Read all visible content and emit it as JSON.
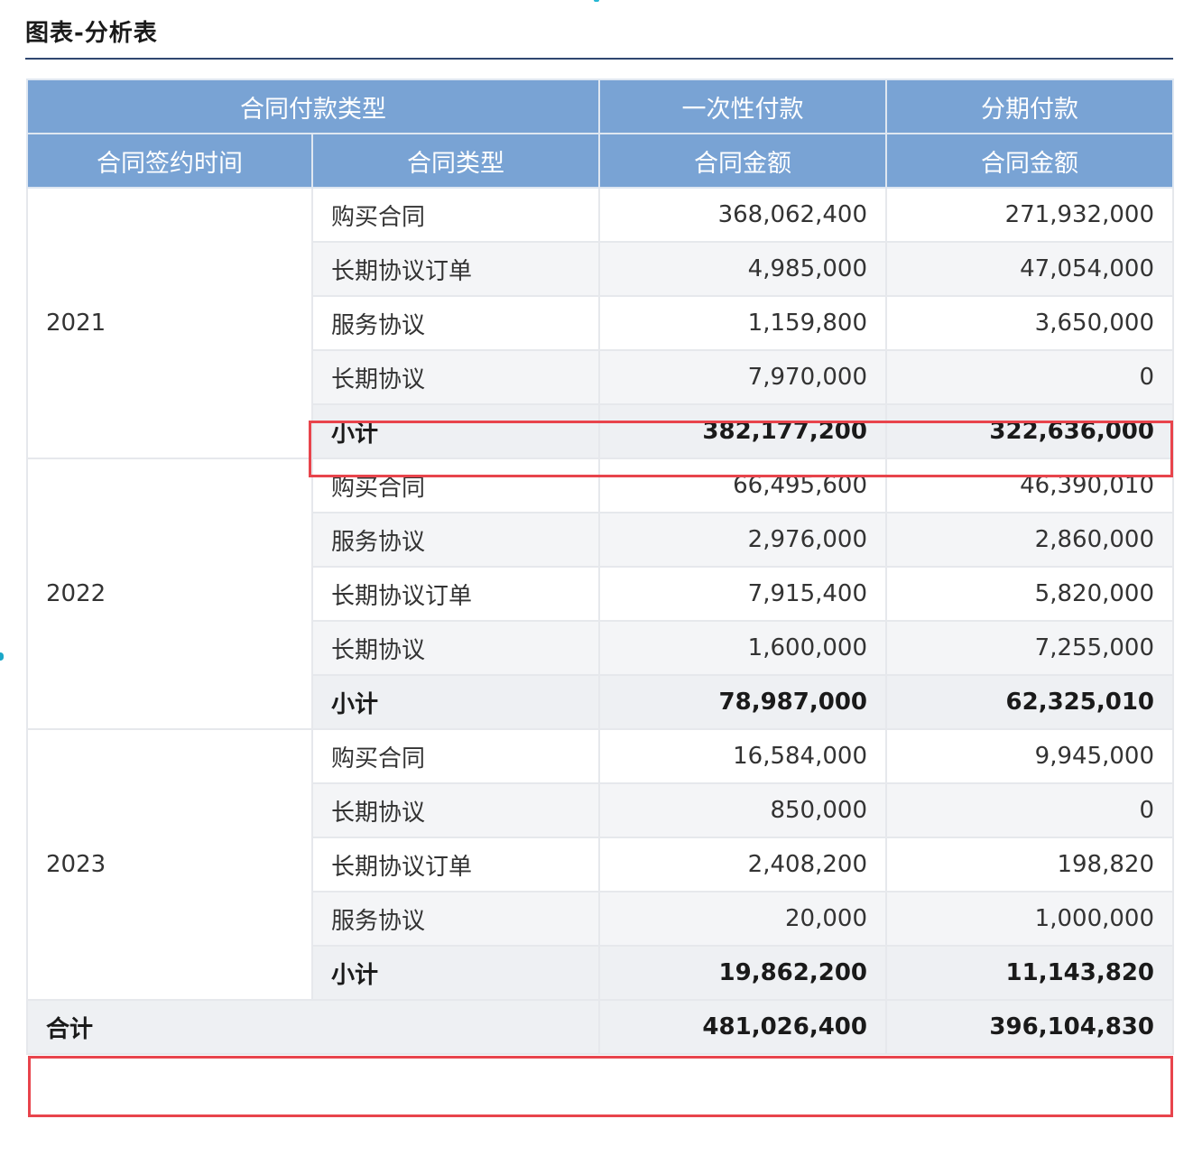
{
  "title": "图表-分析表",
  "highlight_color": "#e8444c",
  "header_color": "#79a3d4",
  "header": {
    "row1": {
      "group_label": "合同付款类型",
      "col_lump": "一次性付款",
      "col_install": "分期付款"
    },
    "row2": {
      "date": "合同签约时间",
      "type": "合同类型",
      "amount_lump": "合同金额",
      "amount_install": "合同金额"
    }
  },
  "groups": [
    {
      "year": "2021",
      "rows": [
        {
          "type": "购买合同",
          "lump": "368,062,400",
          "install": "271,932,000"
        },
        {
          "type": "长期协议订单",
          "lump": "4,985,000",
          "install": "47,054,000"
        },
        {
          "type": "服务协议",
          "lump": "1,159,800",
          "install": "3,650,000"
        },
        {
          "type": "长期协议",
          "lump": "7,970,000",
          "install": "0"
        }
      ],
      "subtotal": {
        "label": "小计",
        "lump": "382,177,200",
        "install": "322,636,000"
      }
    },
    {
      "year": "2022",
      "rows": [
        {
          "type": "购买合同",
          "lump": "66,495,600",
          "install": "46,390,010"
        },
        {
          "type": "服务协议",
          "lump": "2,976,000",
          "install": "2,860,000"
        },
        {
          "type": "长期协议订单",
          "lump": "7,915,400",
          "install": "5,820,000"
        },
        {
          "type": "长期协议",
          "lump": "1,600,000",
          "install": "7,255,000"
        }
      ],
      "subtotal": {
        "label": "小计",
        "lump": "78,987,000",
        "install": "62,325,010"
      }
    },
    {
      "year": "2023",
      "rows": [
        {
          "type": "购买合同",
          "lump": "16,584,000",
          "install": "9,945,000"
        },
        {
          "type": "长期协议",
          "lump": "850,000",
          "install": "0"
        },
        {
          "type": "长期协议订单",
          "lump": "2,408,200",
          "install": "198,820"
        },
        {
          "type": "服务协议",
          "lump": "20,000",
          "install": "1,000,000"
        }
      ],
      "subtotal": {
        "label": "小计",
        "lump": "19,862,200",
        "install": "11,143,820"
      }
    }
  ],
  "total": {
    "label": "合计",
    "lump": "481,026,400",
    "install": "396,104,830"
  }
}
